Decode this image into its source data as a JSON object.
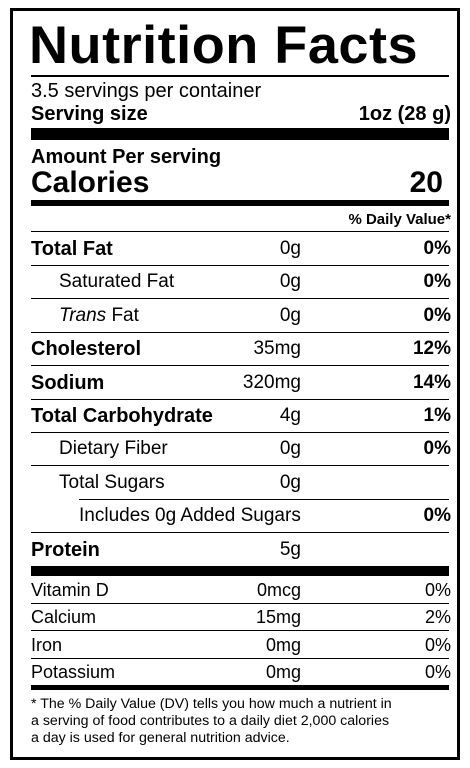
{
  "header": {
    "title": "Nutrition Facts",
    "servings": "3.5 servings per container",
    "serving_size_label": "Serving size",
    "serving_size": "1oz (28 g)"
  },
  "calories": {
    "amount_per": "Amount Per serving",
    "label": "Calories",
    "value": "20"
  },
  "daily_value_header": "% Daily Value*",
  "nutrients": [
    {
      "name": "Total Fat",
      "amount": "0g",
      "dv": "0%",
      "bold": true,
      "indent": 0
    },
    {
      "name": "Saturated Fat",
      "amount": "0g",
      "dv": "0%",
      "bold": false,
      "indent": 1
    },
    {
      "italic": "Trans",
      "name": "Fat",
      "amount": "0g",
      "dv": "0%",
      "bold": false,
      "indent": 1
    },
    {
      "name": "Cholesterol",
      "amount": "35mg",
      "dv": "12%",
      "bold": true,
      "indent": 0
    },
    {
      "name": "Sodium",
      "amount": "320mg",
      "dv": "14%",
      "bold": true,
      "indent": 0
    },
    {
      "name": "Total Carbohydrate",
      "amount": "4g",
      "dv": "1%",
      "bold": true,
      "indent": 0
    },
    {
      "name": "Dietary Fiber",
      "amount": "0g",
      "dv": "0%",
      "bold": false,
      "indent": 1
    },
    {
      "name": "Total Sugars",
      "amount": "0g",
      "bold": false,
      "indent": 1
    },
    {
      "name": "Includes 0g Added Sugars",
      "dv": "0%",
      "bold": false,
      "indent": 2
    },
    {
      "name": "Protein",
      "amount": "5g",
      "bold": true,
      "indent": 0
    }
  ],
  "vitamins": [
    {
      "name": "Vitamin D",
      "amount": "0mcg",
      "dv": "0%"
    },
    {
      "name": "Calcium",
      "amount": "15mg",
      "dv": "2%"
    },
    {
      "name": "Iron",
      "amount": "0mg",
      "dv": "0%"
    },
    {
      "name": "Potassium",
      "amount": "0mg",
      "dv": "0%"
    }
  ],
  "footnote": [
    "* The % Daily Value (DV) tells you how much a nutrient in",
    "a serving of food contributes to a daily diet 2,000 calories",
    "a day is used for general nutrition advice."
  ]
}
